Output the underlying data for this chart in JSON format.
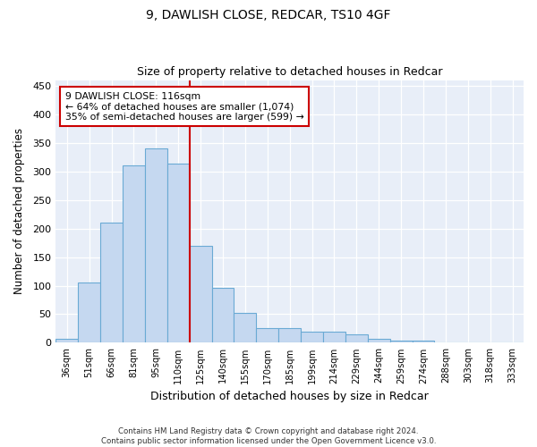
{
  "title1": "9, DAWLISH CLOSE, REDCAR, TS10 4GF",
  "title2": "Size of property relative to detached houses in Redcar",
  "xlabel": "Distribution of detached houses by size in Redcar",
  "ylabel": "Number of detached properties",
  "categories": [
    "36sqm",
    "51sqm",
    "66sqm",
    "81sqm",
    "95sqm",
    "110sqm",
    "125sqm",
    "140sqm",
    "155sqm",
    "170sqm",
    "185sqm",
    "199sqm",
    "214sqm",
    "229sqm",
    "244sqm",
    "259sqm",
    "274sqm",
    "288sqm",
    "303sqm",
    "318sqm",
    "333sqm"
  ],
  "values": [
    7,
    105,
    210,
    310,
    340,
    313,
    170,
    96,
    52,
    25,
    25,
    20,
    20,
    15,
    7,
    4,
    4,
    1,
    1,
    0,
    1
  ],
  "bar_color": "#c5d8f0",
  "bar_edge_color": "#6aaad4",
  "vline_x": 6,
  "vline_color": "#cc0000",
  "annotation_text": "9 DAWLISH CLOSE: 116sqm\n← 64% of detached houses are smaller (1,074)\n35% of semi-detached houses are larger (599) →",
  "annotation_box_facecolor": "#ffffff",
  "annotation_box_edgecolor": "#cc0000",
  "ylim": [
    0,
    460
  ],
  "yticks": [
    0,
    50,
    100,
    150,
    200,
    250,
    300,
    350,
    400,
    450
  ],
  "footnote": "Contains HM Land Registry data © Crown copyright and database right 2024.\nContains public sector information licensed under the Open Government Licence v3.0.",
  "fig_bg_color": "#ffffff",
  "plot_bg_color": "#e8eef8",
  "grid_color": "#ffffff",
  "title1_fontsize": 10,
  "title2_fontsize": 9
}
